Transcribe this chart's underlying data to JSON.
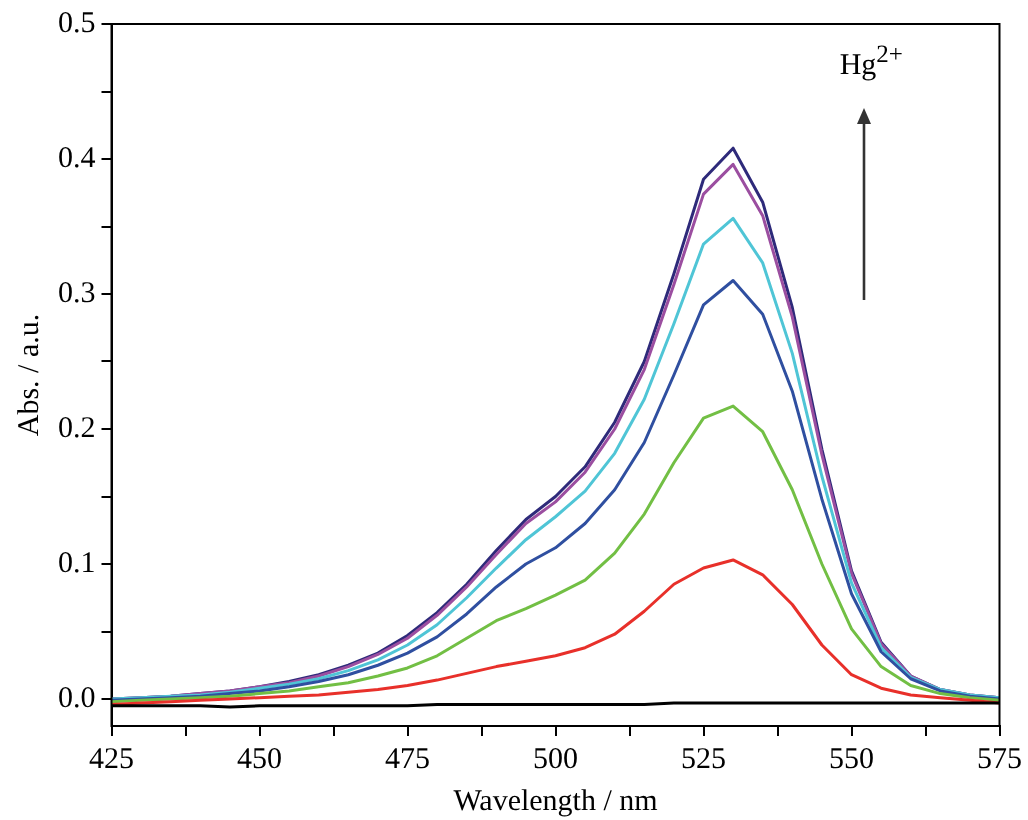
{
  "chart_data": {
    "type": "line",
    "xlabel": "Wavelength / nm",
    "ylabel": "Abs. / a.u.",
    "annotations": [
      "Hg$^{2+}$"
    ],
    "x": [
      425,
      430,
      435,
      440,
      445,
      450,
      455,
      460,
      465,
      470,
      475,
      480,
      485,
      490,
      495,
      500,
      505,
      510,
      515,
      520,
      525,
      530,
      535,
      540,
      545,
      550,
      555,
      560,
      565,
      570,
      575
    ],
    "series": [
      {
        "color": "#000000",
        "values": [
          -0.005,
          -0.005,
          -0.005,
          -0.005,
          -0.006,
          -0.005,
          -0.005,
          -0.005,
          -0.005,
          -0.005,
          -0.005,
          -0.004,
          -0.004,
          -0.004,
          -0.004,
          -0.004,
          -0.004,
          -0.004,
          -0.004,
          -0.003,
          -0.003,
          -0.003,
          -0.003,
          -0.003,
          -0.003,
          -0.003,
          -0.003,
          -0.003,
          -0.003,
          -0.003,
          -0.003
        ]
      },
      {
        "color": "#e8302a",
        "values": [
          -0.004,
          -0.003,
          -0.002,
          -0.001,
          0,
          0.001,
          0.002,
          0.003,
          0.005,
          0.007,
          0.01,
          0.014,
          0.019,
          0.024,
          0.028,
          0.032,
          0.038,
          0.048,
          0.065,
          0.085,
          0.097,
          0.103,
          0.092,
          0.07,
          0.04,
          0.018,
          0.008,
          0.003,
          0.001,
          -0.001,
          -0.003
        ]
      },
      {
        "color": "#72bf44",
        "values": [
          -0.002,
          -0.001,
          0,
          0.001,
          0.002,
          0.004,
          0.006,
          0.009,
          0.012,
          0.017,
          0.023,
          0.032,
          0.045,
          0.058,
          0.067,
          0.077,
          0.088,
          0.108,
          0.137,
          0.175,
          0.208,
          0.217,
          0.198,
          0.155,
          0.1,
          0.052,
          0.024,
          0.01,
          0.004,
          0.001,
          -0.001
        ]
      },
      {
        "color": "#2f4fa0",
        "values": [
          -0.001,
          0,
          0.001,
          0.002,
          0.004,
          0.006,
          0.009,
          0.013,
          0.018,
          0.025,
          0.034,
          0.046,
          0.063,
          0.083,
          0.1,
          0.112,
          0.13,
          0.155,
          0.19,
          0.24,
          0.292,
          0.31,
          0.285,
          0.228,
          0.148,
          0.078,
          0.035,
          0.015,
          0.006,
          0.002,
          0
        ]
      },
      {
        "color": "#4fc5d6",
        "values": [
          0,
          0.001,
          0.002,
          0.003,
          0.005,
          0.008,
          0.011,
          0.015,
          0.021,
          0.029,
          0.04,
          0.055,
          0.075,
          0.097,
          0.118,
          0.135,
          0.154,
          0.182,
          0.222,
          0.278,
          0.337,
          0.356,
          0.323,
          0.256,
          0.165,
          0.086,
          0.038,
          0.016,
          0.007,
          0.003,
          0.001
        ]
      },
      {
        "color": "#9b4ea0",
        "values": [
          0,
          0.001,
          0.002,
          0.004,
          0.006,
          0.009,
          0.012,
          0.017,
          0.024,
          0.033,
          0.045,
          0.062,
          0.083,
          0.107,
          0.13,
          0.146,
          0.168,
          0.2,
          0.244,
          0.307,
          0.374,
          0.396,
          0.358,
          0.283,
          0.181,
          0.093,
          0.041,
          0.017,
          0.007,
          0.003,
          0.001
        ]
      },
      {
        "color": "#2e2a7a",
        "values": [
          0,
          0.001,
          0.002,
          0.004,
          0.006,
          0.009,
          0.013,
          0.018,
          0.025,
          0.034,
          0.047,
          0.064,
          0.085,
          0.11,
          0.133,
          0.15,
          0.172,
          0.205,
          0.25,
          0.315,
          0.385,
          0.408,
          0.368,
          0.29,
          0.185,
          0.095,
          0.042,
          0.017,
          0.007,
          0.003,
          0.001
        ]
      }
    ],
    "xlim": [
      425,
      575
    ],
    "xticks": [
      425,
      {
        "value": 437.5,
        "label": null
      },
      450,
      {
        "value": 462.5,
        "label": null
      },
      475,
      {
        "value": 487.5,
        "label": null
      },
      500,
      {
        "value": 512.5,
        "label": null
      },
      525,
      {
        "value": 537.5,
        "label": null
      },
      550,
      {
        "value": 562.5,
        "label": null
      },
      575
    ],
    "ylim": [
      -0.02,
      0.5
    ],
    "yticks": [
      {
        "value": 0,
        "label": "0.0"
      },
      {
        "value": 0.05,
        "label": null
      },
      0.1,
      {
        "value": 0.15,
        "label": null
      },
      0.2,
      {
        "value": 0.25,
        "label": null
      },
      0.3,
      {
        "value": 0.35,
        "label": null
      },
      0.4,
      {
        "value": 0.45,
        "label": null
      },
      0.5
    ],
    "grid": false,
    "legend": false
  }
}
